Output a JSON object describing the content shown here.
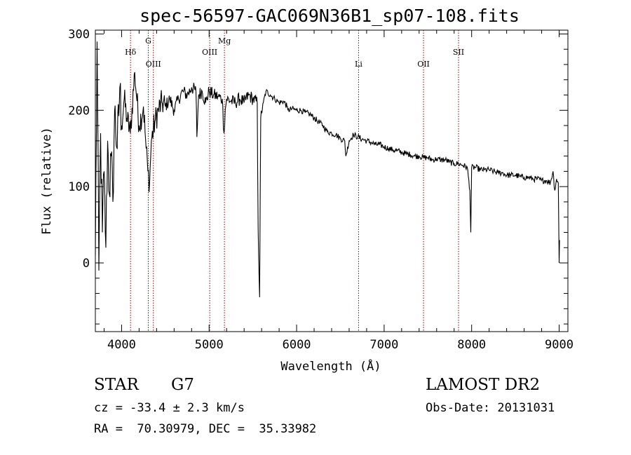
{
  "chart_data": {
    "type": "line",
    "title": "spec-56597-GAC069N36B1_sp07-108.fits",
    "xlabel": "Wavelength (Å)",
    "ylabel": "Flux (relative)",
    "xlim": [
      3700,
      9100
    ],
    "ylim": [
      -90,
      305
    ],
    "xticks": [
      4000,
      5000,
      6000,
      7000,
      8000,
      9000
    ],
    "yticks": [
      0,
      100,
      200,
      300
    ],
    "xtick_labels": [
      "4000",
      "5000",
      "6000",
      "7000",
      "8000",
      "9000"
    ],
    "ytick_labels": [
      "0",
      "100",
      "200",
      "300"
    ],
    "grid": false,
    "line_color": "#000000",
    "marker_color": "#8b0000",
    "series": [
      {
        "x": [
          3700,
          3720,
          3740,
          3760,
          3780,
          3800,
          3820,
          3840,
          3860,
          3880,
          3900,
          3920,
          3950,
          3980,
          4000,
          4030,
          4060,
          4100,
          4150,
          4200,
          4250,
          4280,
          4300,
          4320,
          4340,
          4380,
          4420,
          4460,
          4500,
          4550,
          4600,
          4650,
          4700,
          4750,
          4800,
          4850,
          4860,
          4880,
          4920,
          4960,
          5000,
          5050,
          5100,
          5150,
          5170,
          5184,
          5200,
          5250,
          5300,
          5350,
          5400,
          5450,
          5500,
          5550,
          5560,
          5577,
          5590,
          5620,
          5650,
          5700,
          5750,
          5800,
          5850,
          5890,
          5900,
          5950,
          6000,
          6050,
          6100,
          6150,
          6200,
          6250,
          6300,
          6350,
          6400,
          6450,
          6500,
          6550,
          6563,
          6600,
          6650,
          6700,
          6750,
          6800,
          6850,
          6900,
          6950,
          7000,
          7050,
          7100,
          7150,
          7200,
          7250,
          7300,
          7350,
          7400,
          7450,
          7500,
          7550,
          7600,
          7650,
          7700,
          7750,
          7800,
          7850,
          7900,
          7950,
          7980,
          7990,
          8000,
          8050,
          8100,
          8150,
          8200,
          8250,
          8300,
          8350,
          8400,
          8450,
          8500,
          8550,
          8600,
          8650,
          8700,
          8750,
          8800,
          8850,
          8900,
          8930,
          8950,
          8970,
          8990,
          9000,
          9005
        ],
        "y": [
          10,
          290,
          -10,
          170,
          40,
          120,
          20,
          160,
          90,
          140,
          80,
          200,
          150,
          230,
          180,
          215,
          190,
          170,
          250,
          180,
          205,
          150,
          120,
          105,
          160,
          185,
          200,
          210,
          205,
          215,
          200,
          215,
          225,
          220,
          230,
          225,
          165,
          220,
          225,
          210,
          225,
          220,
          218,
          215,
          170,
          200,
          215,
          212,
          210,
          215,
          210,
          220,
          215,
          210,
          45,
          -45,
          190,
          210,
          225,
          220,
          215,
          210,
          212,
          205,
          200,
          202,
          200,
          200,
          197,
          195,
          190,
          185,
          180,
          172,
          170,
          168,
          163,
          160,
          140,
          160,
          168,
          165,
          162,
          160,
          158,
          155,
          155,
          152,
          150,
          148,
          147,
          145,
          143,
          142,
          140,
          140,
          138,
          138,
          135,
          136,
          135,
          135,
          132,
          130,
          130,
          128,
          125,
          95,
          40,
          125,
          125,
          122,
          122,
          122,
          120,
          118,
          118,
          115,
          115,
          115,
          113,
          112,
          112,
          110,
          110,
          108,
          108,
          105,
          120,
          95,
          110,
          105,
          0,
          30
        ]
      }
    ],
    "line_markers": [
      {
        "label": "Hδ",
        "x": 4102,
        "label_row": 1
      },
      {
        "label": "G",
        "x": 4305,
        "label_row": 0
      },
      {
        "label": "OIII",
        "x": 4363,
        "label_row": 2
      },
      {
        "label": "OIII",
        "x": 5007,
        "label_row": 1
      },
      {
        "label": "Mg",
        "x": 5175,
        "label_row": 0
      },
      {
        "label": "Li",
        "x": 6708,
        "label_row": 2
      },
      {
        "label": "OII",
        "x": 7450,
        "label_row": 2
      },
      {
        "label": "SII",
        "x": 7850,
        "label_row": 1
      }
    ]
  },
  "info": {
    "object_class": "STAR",
    "subclass": "G7",
    "survey": "LAMOST DR2",
    "velocity": "cz = -33.4 ± 2.3 km/s",
    "obs_date": "Obs-Date: 20131031",
    "coords": "RA =  70.30979, DEC =  35.33982"
  }
}
